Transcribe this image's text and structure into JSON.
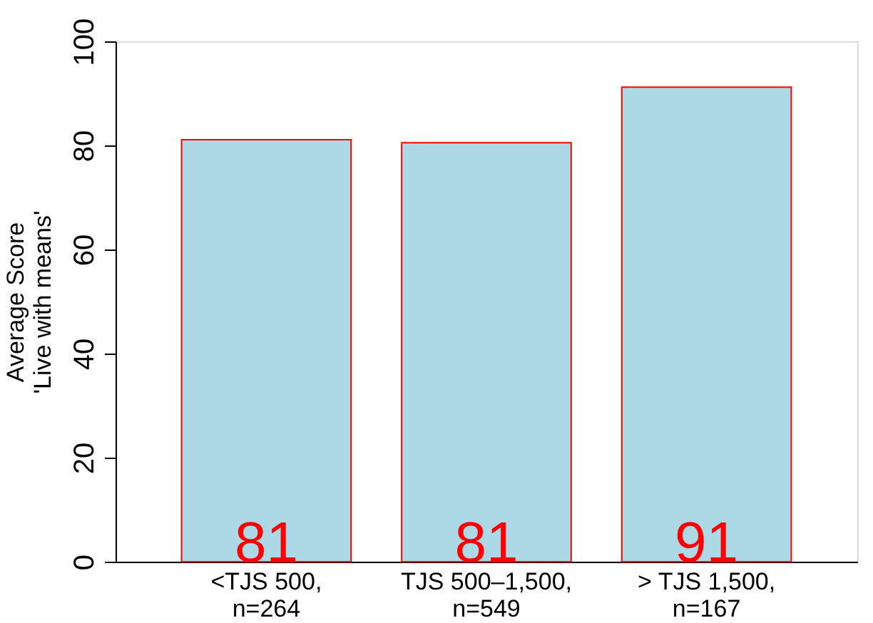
{
  "chart_data": {
    "type": "bar",
    "ylabel": "Average Score\n'Live with means'",
    "categories": [
      "<TJS 500,\nn=264",
      "TJS 500–1,500,\nn=549",
      "> TJS 1,500,\nn=167"
    ],
    "values": [
      81.1,
      80.5,
      91.2
    ],
    "value_labels": [
      "81",
      "81",
      "91"
    ],
    "color": "#add8e6",
    "ylim": [
      0,
      100
    ],
    "yticks": [
      0,
      20,
      40,
      60,
      80,
      100
    ],
    "grid": false
  }
}
